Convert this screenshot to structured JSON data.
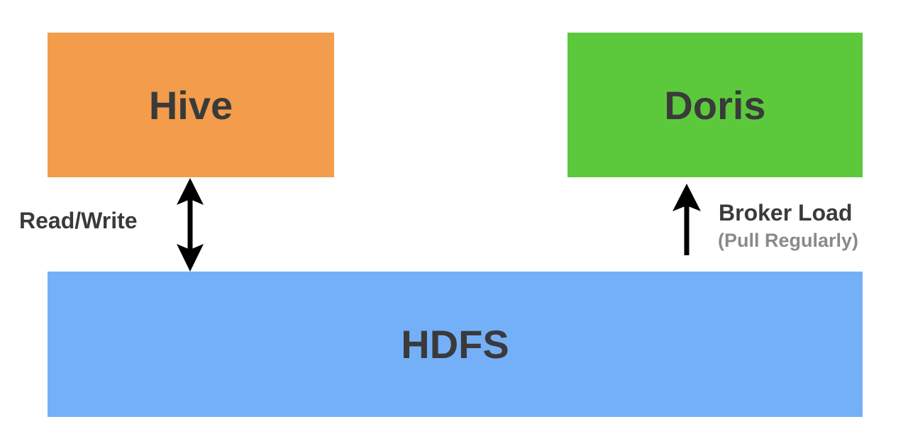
{
  "nodes": {
    "hive": {
      "label": "Hive",
      "color": "#F39C4B"
    },
    "doris": {
      "label": "Doris",
      "color": "#5CC93D"
    },
    "hdfs": {
      "label": "HDFS",
      "color": "#74B0F7"
    }
  },
  "edges": {
    "hive_hdfs": {
      "label": "Read/Write",
      "direction": "bidirectional"
    },
    "hdfs_doris": {
      "label": "Broker Load",
      "sublabel": "(Pull Regularly)",
      "direction": "up"
    }
  },
  "colors": {
    "text": "#3A3A3A",
    "subtext": "#8A8A8A",
    "arrow": "#000000"
  }
}
